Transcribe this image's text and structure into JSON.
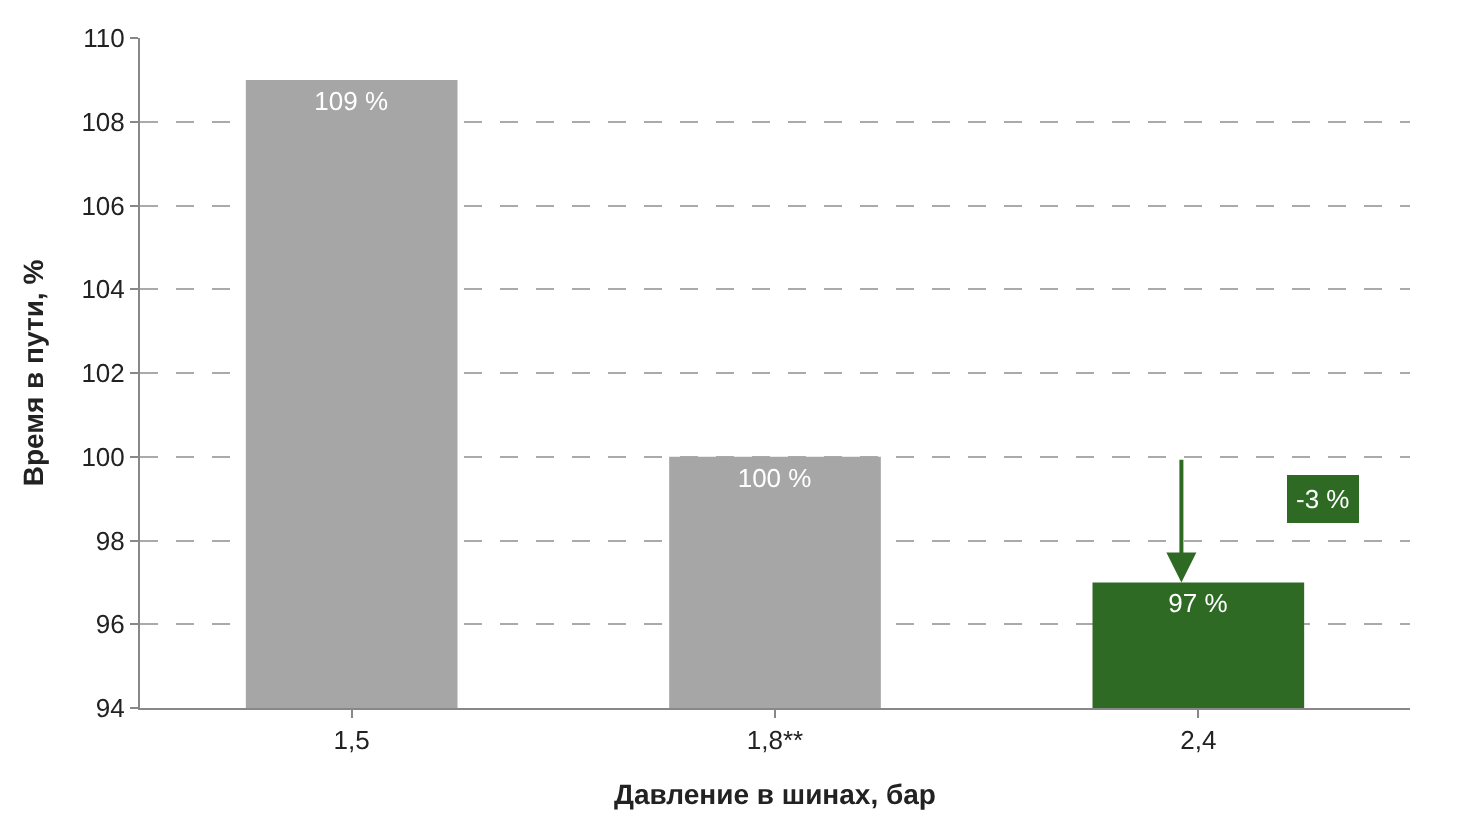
{
  "chart_data": {
    "type": "bar",
    "xlabel": "Давление в шинах, бар",
    "ylabel": "Время в пути, %",
    "categories": [
      "1,5",
      "1,8**",
      "2,4"
    ],
    "values": [
      109,
      100,
      97
    ],
    "colors": [
      "#a6a6a6",
      "#a6a6a6",
      "#2f6a25"
    ],
    "value_labels": [
      "109 %",
      "100 %",
      "97 %"
    ],
    "annotations": [
      "-3 %"
    ],
    "ylim": [
      94,
      110
    ],
    "yticks": [
      94,
      96,
      98,
      100,
      102,
      104,
      106,
      108,
      110
    ],
    "grid": "y"
  }
}
